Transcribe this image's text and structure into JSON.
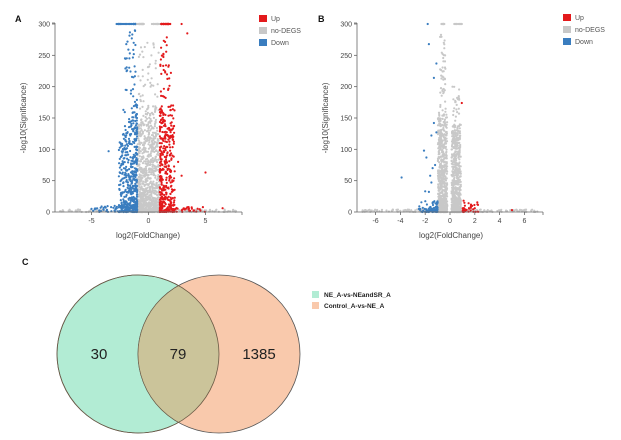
{
  "colors": {
    "up": "#e31a1c",
    "nodegs": "#c8c8c8",
    "down": "#3a7dbf",
    "venn_left": "#b2ecd4",
    "venn_right": "#f9c9ac",
    "venn_overlap": "#cbc49a",
    "axis": "#666666"
  },
  "chart_data": [
    {
      "panel": "A",
      "type": "scatter",
      "title": "",
      "xlabel": "log2(FoldChange)",
      "ylabel": "-log10(Significance)",
      "xlim": [
        -8.2,
        8.2
      ],
      "ylim": [
        0,
        300
      ],
      "xticks": [
        -5,
        0,
        5
      ],
      "yticks": [
        0,
        50,
        100,
        150,
        200,
        250,
        300
      ],
      "grid": false,
      "legend": {
        "position": "top-right",
        "entries": [
          "Up",
          "no-DEGS",
          "Down"
        ]
      },
      "thresholds": {
        "down_log2fc": -1,
        "up_log2fc": 1
      },
      "series": [
        {
          "name": "Up",
          "description": "dense band log2FC 1 to ~2, -log10 0 to 300; capped points at 300",
          "points": [
            [
              2.9,
              300
            ],
            [
              3.4,
              285
            ],
            [
              2.6,
              80
            ],
            [
              2.9,
              58
            ],
            [
              5.0,
              63
            ],
            [
              6.5,
              6
            ],
            [
              2.0,
              170
            ],
            [
              2.1,
              90
            ],
            [
              1.6,
              300
            ],
            [
              1.9,
              300
            ]
          ]
        },
        {
          "name": "no-DEGS",
          "description": "dense band log2FC -1 to 1, -log10 0 to ~270; cap at 300 near -0.3 and 0.4",
          "points": [
            [
              -0.5,
              300
            ],
            [
              0.3,
              300
            ],
            [
              -0.1,
              270
            ],
            [
              -0.7,
              210
            ],
            [
              -7,
              2
            ],
            [
              7.5,
              2
            ]
          ]
        },
        {
          "name": "Down",
          "description": "dense band log2FC -2.5 to -1, -log10 0 to 300; capped points at 300",
          "points": [
            [
              -2.8,
              300
            ],
            [
              -1.5,
              300
            ],
            [
              -3.5,
              97
            ],
            [
              -2.2,
              163
            ],
            [
              -2.6,
              57
            ],
            [
              -5.0,
              5
            ],
            [
              -2.0,
              195
            ],
            [
              -1.3,
              270
            ]
          ]
        }
      ]
    },
    {
      "panel": "B",
      "type": "scatter",
      "title": "",
      "xlabel": "log2(FoldChange)",
      "ylabel": "-log10(Significance)",
      "xlim": [
        -7.5,
        7.5
      ],
      "ylim": [
        0,
        300
      ],
      "xticks": [
        -6,
        -4,
        -2,
        0,
        2,
        4,
        6
      ],
      "yticks": [
        0,
        50,
        100,
        150,
        200,
        250,
        300
      ],
      "grid": false,
      "legend": {
        "position": "top-right",
        "entries": [
          "Up",
          "no-DEGS",
          "Down"
        ]
      },
      "thresholds": {
        "down_log2fc": -1,
        "up_log2fc": 1
      },
      "series": [
        {
          "name": "Up",
          "description": "few points log2FC 1 to ~2.5, -log10 below ~20",
          "points": [
            [
              0.95,
              174
            ],
            [
              1.1,
              18
            ],
            [
              1.5,
              14
            ],
            [
              2.0,
              6
            ],
            [
              5.0,
              3
            ],
            [
              1.2,
              10
            ]
          ]
        },
        {
          "name": "no-DEGS",
          "description": "two dense lobes near -0.6 and +0.5, up to 300 capped",
          "points": [
            [
              -0.6,
              300
            ],
            [
              0.5,
              300
            ],
            [
              0.2,
              200
            ],
            [
              -0.5,
              270
            ],
            [
              -6.8,
              3
            ],
            [
              6.8,
              2
            ]
          ]
        },
        {
          "name": "Down",
          "description": "scattered log2FC -2.5 to -1",
          "points": [
            [
              -1.8,
              300
            ],
            [
              -1.7,
              268
            ],
            [
              -1.1,
              237
            ],
            [
              -1.3,
              214
            ],
            [
              -1.3,
              142
            ],
            [
              -1.5,
              122
            ],
            [
              -1.1,
              127
            ],
            [
              -2.1,
              98
            ],
            [
              -1.9,
              87
            ],
            [
              -3.9,
              55
            ],
            [
              -1.2,
              75
            ],
            [
              -1.4,
              70
            ],
            [
              -1.6,
              58
            ],
            [
              -1.5,
              47
            ],
            [
              -2.0,
              33
            ],
            [
              -1.7,
              32
            ],
            [
              -2.4,
              5
            ],
            [
              -1.0,
              15
            ]
          ]
        }
      ]
    },
    {
      "panel": "C",
      "type": "venn",
      "sets": [
        {
          "name": "NE_A-vs-NEandSR_A",
          "only": 30
        },
        {
          "name": "Control_A-vs-NE_A",
          "only": 1385
        }
      ],
      "intersection": 79,
      "legend": {
        "position": "right",
        "entries": [
          "NE_A-vs-NEandSR_A",
          "Control_A-vs-NE_A"
        ]
      }
    }
  ],
  "panels": {
    "A": {
      "label": "A",
      "legend": [
        "Up",
        "no-DEGS",
        "Down"
      ]
    },
    "B": {
      "label": "B",
      "legend": [
        "Up",
        "no-DEGS",
        "Down"
      ]
    },
    "C": {
      "label": "C"
    }
  }
}
